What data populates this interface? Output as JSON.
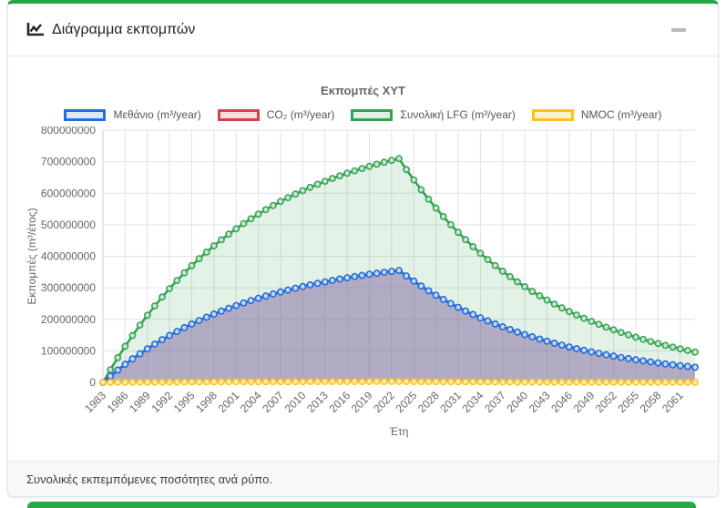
{
  "panel": {
    "header": {
      "title": "Διάγραμμα εκπομπών",
      "icon": "chart-line-icon",
      "collapse": "minimize"
    },
    "footer": "Συνολικές εκπεμπόμενες ποσότητες ανά ρύπο."
  },
  "colors": {
    "accent_green": "#28a745",
    "grid": "#e2e2e2",
    "tick_text": "#666666",
    "title_text": "#666666",
    "legend_text": "#555555"
  },
  "chart_data": {
    "type": "line",
    "title": "Εκπομπές ΧΥΤ",
    "xlabel": "Έτη",
    "ylabel": "Εκπομπές (m³/έτος)",
    "ylim": [
      0,
      800000000
    ],
    "grid": true,
    "legend_position": "top",
    "markers": true,
    "x_tick_labels": [
      1983,
      1986,
      1989,
      1992,
      1995,
      1998,
      2001,
      2004,
      2007,
      2010,
      2013,
      2016,
      2019,
      2022,
      2025,
      2028,
      2031,
      2034,
      2037,
      2040,
      2043,
      2046,
      2049,
      2052,
      2055,
      2058,
      2061
    ],
    "y_ticks": [
      0,
      100000000,
      200000000,
      300000000,
      400000000,
      500000000,
      600000000,
      700000000,
      800000000
    ],
    "x": [
      1983,
      1984,
      1985,
      1986,
      1987,
      1988,
      1989,
      1990,
      1991,
      1992,
      1993,
      1994,
      1995,
      1996,
      1997,
      1998,
      1999,
      2000,
      2001,
      2002,
      2003,
      2004,
      2005,
      2006,
      2007,
      2008,
      2009,
      2010,
      2011,
      2012,
      2013,
      2014,
      2015,
      2016,
      2017,
      2018,
      2019,
      2020,
      2021,
      2022,
      2023,
      2024,
      2025,
      2026,
      2027,
      2028,
      2029,
      2030,
      2031,
      2032,
      2033,
      2034,
      2035,
      2036,
      2037,
      2038,
      2039,
      2040,
      2041,
      2042,
      2043,
      2044,
      2045,
      2046,
      2047,
      2048,
      2049,
      2050,
      2051,
      2052,
      2053,
      2054,
      2055,
      2056,
      2057,
      2058,
      2059,
      2060,
      2061,
      2062,
      2063
    ],
    "series": [
      {
        "name": "Μεθάνιο (m³/year)",
        "color": "#1f6fde",
        "tint": "#d9e8fa",
        "fill": "rgba(31,111,222,0.30)",
        "values": [
          0,
          20025000,
          39070000,
          57185000,
          74420000,
          90815000,
          106410000,
          121245000,
          135355000,
          148775000,
          161545000,
          173690000,
          185240000,
          196230000,
          206685000,
          216625000,
          226085000,
          235080000,
          243640000,
          251780000,
          259525000,
          266890000,
          273900000,
          280565000,
          286905000,
          292935000,
          298670000,
          304130000,
          309320000,
          314255000,
          318955000,
          323420000,
          327670000,
          331710000,
          335555000,
          339215000,
          342695000,
          346005000,
          349155000,
          352150000,
          355000000,
          337685000,
          321215000,
          305550000,
          290645000,
          276470000,
          262985000,
          250160000,
          237960000,
          226355000,
          215315000,
          204815000,
          194825000,
          185320000,
          176280000,
          167685000,
          159505000,
          151725000,
          144325000,
          137285000,
          130590000,
          124220000,
          118165000,
          112400000,
          106915000,
          101700000,
          96740000,
          92025000,
          87535000,
          83265000,
          79205000,
          75340000,
          71665000,
          68170000,
          64845000,
          61685000,
          58675000,
          55815000,
          53090000,
          50500000,
          48040000
        ]
      },
      {
        "name": "CO₂ (m³/year)",
        "color": "#d6404d",
        "tint": "#f8dee1",
        "fill": "rgba(214,64,77,0.22)",
        "values": [
          0,
          20025000,
          39070000,
          57185000,
          74420000,
          90815000,
          106410000,
          121245000,
          135355000,
          148775000,
          161545000,
          173690000,
          185240000,
          196230000,
          206685000,
          216625000,
          226085000,
          235080000,
          243640000,
          251780000,
          259525000,
          266890000,
          273900000,
          280565000,
          286905000,
          292935000,
          298670000,
          304130000,
          309320000,
          314255000,
          318955000,
          323420000,
          327670000,
          331710000,
          335555000,
          339215000,
          342695000,
          346005000,
          349155000,
          352150000,
          355000000,
          337685000,
          321215000,
          305550000,
          290645000,
          276470000,
          262985000,
          250160000,
          237960000,
          226355000,
          215315000,
          204815000,
          194825000,
          185320000,
          176280000,
          167685000,
          159505000,
          151725000,
          144325000,
          137285000,
          130590000,
          124220000,
          118165000,
          112400000,
          106915000,
          101700000,
          96740000,
          92025000,
          87535000,
          83265000,
          79205000,
          75340000,
          71665000,
          68170000,
          64845000,
          61685000,
          58675000,
          55815000,
          53090000,
          50500000,
          48040000
        ]
      },
      {
        "name": "Συνολική LFG (m³/year)",
        "color": "#33a352",
        "tint": "#def0e3",
        "fill": "rgba(51,163,82,0.14)",
        "values": [
          0,
          40050000,
          78140000,
          114370000,
          148840000,
          181630000,
          212820000,
          242490000,
          270710000,
          297550000,
          323090000,
          347380000,
          370480000,
          392460000,
          413370000,
          433250000,
          452170000,
          470160000,
          487280000,
          503560000,
          519050000,
          533780000,
          547800000,
          561130000,
          573810000,
          585870000,
          597340000,
          608260000,
          618640000,
          628510000,
          637910000,
          646840000,
          655340000,
          663420000,
          671110000,
          678430000,
          685390000,
          692010000,
          698310000,
          704300000,
          710000000,
          675370000,
          642430000,
          611100000,
          581290000,
          552940000,
          525970000,
          500320000,
          475920000,
          452710000,
          430630000,
          409630000,
          389650000,
          370640000,
          352560000,
          335370000,
          319010000,
          303450000,
          288650000,
          274570000,
          261180000,
          248440000,
          236330000,
          224800000,
          213830000,
          203400000,
          193480000,
          184050000,
          175070000,
          166530000,
          158410000,
          150680000,
          143330000,
          136340000,
          129690000,
          123370000,
          117350000,
          111630000,
          106180000,
          101000000,
          96080000
        ]
      },
      {
        "name": "NMOC (m³/year)",
        "color": "#fcc21b",
        "tint": "#fdf2d0",
        "fill": "rgba(252,194,27,0.25)",
        "values": [
          0,
          160000,
          310000,
          460000,
          600000,
          730000,
          850000,
          970000,
          1080000,
          1190000,
          1290000,
          1390000,
          1480000,
          1570000,
          1650000,
          1730000,
          1810000,
          1880000,
          1950000,
          2010000,
          2080000,
          2140000,
          2190000,
          2240000,
          2300000,
          2340000,
          2390000,
          2430000,
          2470000,
          2510000,
          2550000,
          2590000,
          2620000,
          2650000,
          2680000,
          2710000,
          2740000,
          2770000,
          2790000,
          2820000,
          2840000,
          2700000,
          2570000,
          2440000,
          2330000,
          2210000,
          2100000,
          2000000,
          1900000,
          1810000,
          1720000,
          1640000,
          1560000,
          1480000,
          1410000,
          1340000,
          1280000,
          1210000,
          1150000,
          1100000,
          1040000,
          990000,
          950000,
          900000,
          860000,
          810000,
          770000,
          740000,
          700000,
          670000,
          630000,
          600000,
          570000,
          550000,
          520000,
          490000,
          470000,
          450000,
          420000,
          400000,
          380000
        ]
      }
    ]
  }
}
